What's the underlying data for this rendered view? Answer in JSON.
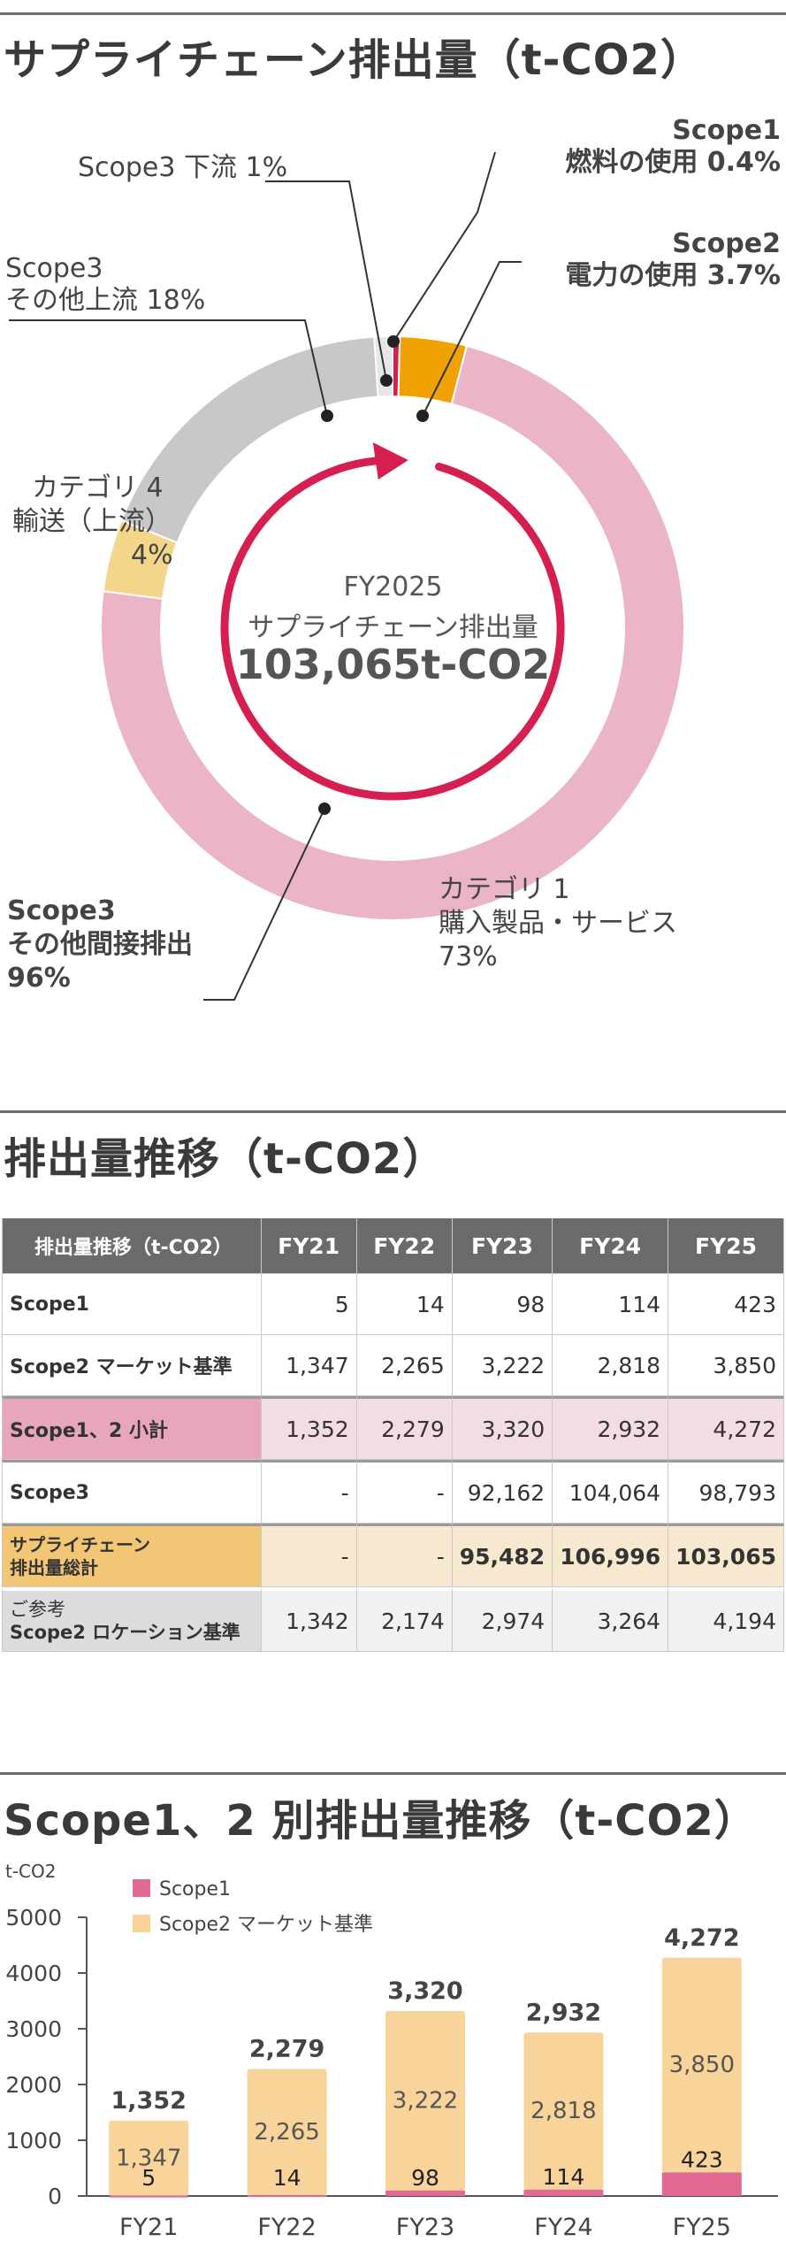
{
  "donut": {
    "title": "サプライチェーン排出量（t-CO2）",
    "center": {
      "fy": "FY2025",
      "label": "サプライチェーン排出量",
      "total": "103,065t-CO2"
    },
    "callouts": {
      "s1_title": "Scope1",
      "s1_text": "燃料の使用 0.4%",
      "s2_title": "Scope2",
      "s2_text": "電力の使用 3.7%",
      "down": "Scope3 下流 1%",
      "up_title": "Scope3",
      "up_text": "その他上流 18%",
      "cat4_a": "カテゴリ 4",
      "cat4_b": "輸送（上流）",
      "cat4_c": "4%",
      "cat1_a": "カテゴリ 1",
      "cat1_b": "購入製品・サービス",
      "cat1_c": "73%",
      "s3_a": "Scope3",
      "s3_b": "その他間接排出",
      "s3_c": "96%"
    },
    "colors": {
      "scope1": "#d61f51",
      "scope2": "#f0a103",
      "cat1": "#ebb4c8",
      "cat4": "#f4d68b",
      "upstream": "#c9c7c7",
      "downstream": "#e8e6e6"
    }
  },
  "table": {
    "title": "排出量推移（t-CO2）",
    "header": [
      "排出量推移（t-CO2）",
      "FY21",
      "FY22",
      "FY23",
      "FY24",
      "FY25"
    ],
    "rows": [
      {
        "name": "Scope1",
        "values": [
          "5",
          "14",
          "98",
          "114",
          "423"
        ]
      },
      {
        "name": "Scope2 マーケット基準",
        "values": [
          "1,347",
          "2,265",
          "3,222",
          "2,818",
          "3,850"
        ]
      },
      {
        "name": "Scope1、2 小計",
        "values": [
          "1,352",
          "2,279",
          "3,320",
          "2,932",
          "4,272"
        ]
      },
      {
        "name": "Scope3",
        "values": [
          "-",
          "-",
          "92,162",
          "104,064",
          "98,793"
        ]
      },
      {
        "name_a": "サプライチェーン",
        "name_b": "排出量総計",
        "values": [
          "-",
          "-",
          "95,482",
          "106,996",
          "103,065"
        ]
      },
      {
        "name_a": "ご参考",
        "name_b": "Scope2 ロケーション基準",
        "values": [
          "1,342",
          "2,174",
          "2,974",
          "3,264",
          "4,194"
        ]
      }
    ]
  },
  "chart_data": [
    {
      "type": "pie",
      "title": "サプライチェーン排出量（t-CO2）",
      "categories": [
        "Scope1 燃料の使用",
        "Scope2 電力の使用",
        "カテゴリ 1 購入製品・サービス",
        "カテゴリ 4 輸送（上流）",
        "Scope3 その他上流",
        "Scope3 下流"
      ],
      "values": [
        0.4,
        3.7,
        73,
        4,
        18,
        1
      ],
      "unit": "%"
    },
    {
      "type": "bar",
      "stacked": true,
      "title": "Scope1、2 別排出量推移（t-CO2）",
      "ylabel": "t-CO2",
      "categories": [
        "FY21",
        "FY22",
        "FY23",
        "FY24",
        "FY25"
      ],
      "series": [
        {
          "name": "Scope1",
          "values": [
            5,
            14,
            98,
            114,
            423
          ],
          "color": "#e06a93"
        },
        {
          "name": "Scope2 マーケット基準",
          "values": [
            1347,
            2265,
            3222,
            2818,
            3850
          ],
          "color": "#f8d49a"
        }
      ],
      "totals": [
        1352,
        2279,
        3320,
        2932,
        4272
      ],
      "ylim": [
        0,
        5000
      ],
      "yticks": [
        0,
        1000,
        2000,
        3000,
        4000,
        5000
      ],
      "legend": "top-left"
    }
  ]
}
